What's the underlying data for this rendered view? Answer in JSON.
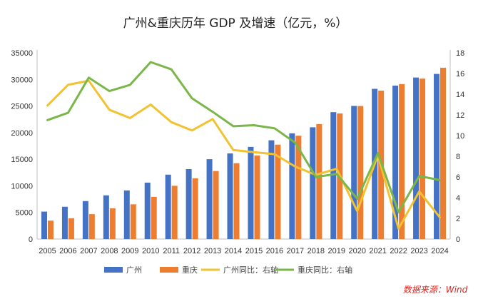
{
  "chart_data": {
    "type": "bar",
    "title": "广州&重庆历年 GDP 及增速（亿元，%）",
    "categories": [
      "2005",
      "2006",
      "2007",
      "2008",
      "2009",
      "2010",
      "2011",
      "2012",
      "2013",
      "2014",
      "2015",
      "2016",
      "2017",
      "2018",
      "2019",
      "2020",
      "2021",
      "2022",
      "2023",
      "2024"
    ],
    "series": [
      {
        "name": "广州",
        "kind": "bar",
        "axis": "left",
        "color": "#4472c4",
        "values": [
          5155,
          6068,
          7134,
          8216,
          9138,
          10604,
          12103,
          13144,
          15003,
          16097,
          17315,
          18560,
          19871,
          21002,
          23845,
          25019,
          28232,
          28839,
          30356,
          31032
        ]
      },
      {
        "name": "重庆",
        "kind": "bar",
        "axis": "left",
        "color": "#ed7d31",
        "values": [
          3468,
          3907,
          4676,
          5793,
          6530,
          7926,
          10011,
          11410,
          12783,
          14263,
          15717,
          17741,
          19425,
          21589,
          23606,
          25003,
          27894,
          29129,
          30146,
          32193
        ]
      },
      {
        "name": "广州同比：右轴",
        "kind": "line",
        "axis": "right",
        "color": "#f2c230",
        "values": [
          12.9,
          14.9,
          15.3,
          12.5,
          11.7,
          13.0,
          11.3,
          10.5,
          11.6,
          8.6,
          8.4,
          8.2,
          7.0,
          6.2,
          6.8,
          2.7,
          8.1,
          1.0,
          4.6,
          2.1
        ]
      },
      {
        "name": "重庆同比：右轴",
        "kind": "line",
        "axis": "right",
        "color": "#7ab648",
        "values": [
          11.5,
          12.2,
          15.6,
          14.3,
          14.9,
          17.1,
          16.4,
          13.6,
          12.3,
          10.9,
          11.0,
          10.7,
          9.3,
          6.0,
          6.3,
          3.9,
          8.3,
          2.6,
          6.1,
          5.7
        ]
      }
    ],
    "y_left": {
      "min": 0,
      "max": 35000,
      "ticks": [
        0,
        5000,
        10000,
        15000,
        20000,
        25000,
        30000,
        35000
      ],
      "tick_labels": [
        "0",
        "5000",
        "10000",
        "15000",
        "20000",
        "25000",
        "30000",
        "35000"
      ]
    },
    "y_right": {
      "min": 0,
      "max": 18,
      "ticks": [
        0,
        2,
        4,
        6,
        8,
        10,
        12,
        14,
        16,
        18
      ],
      "tick_labels": [
        "0",
        "2",
        "4",
        "6",
        "8",
        "10",
        "12",
        "14",
        "16",
        "18"
      ]
    },
    "legend": {
      "position": "bottom",
      "items": [
        {
          "label": "广州",
          "kind": "bar",
          "color": "#4472c4"
        },
        {
          "label": "重庆",
          "kind": "bar",
          "color": "#ed7d31"
        },
        {
          "label": "广州同比：右轴",
          "kind": "line",
          "color": "#f2c230"
        },
        {
          "label": "重庆同比：右轴",
          "kind": "line",
          "color": "#7ab648"
        }
      ]
    },
    "grid": false,
    "source_note": "数据来源：Wind"
  }
}
